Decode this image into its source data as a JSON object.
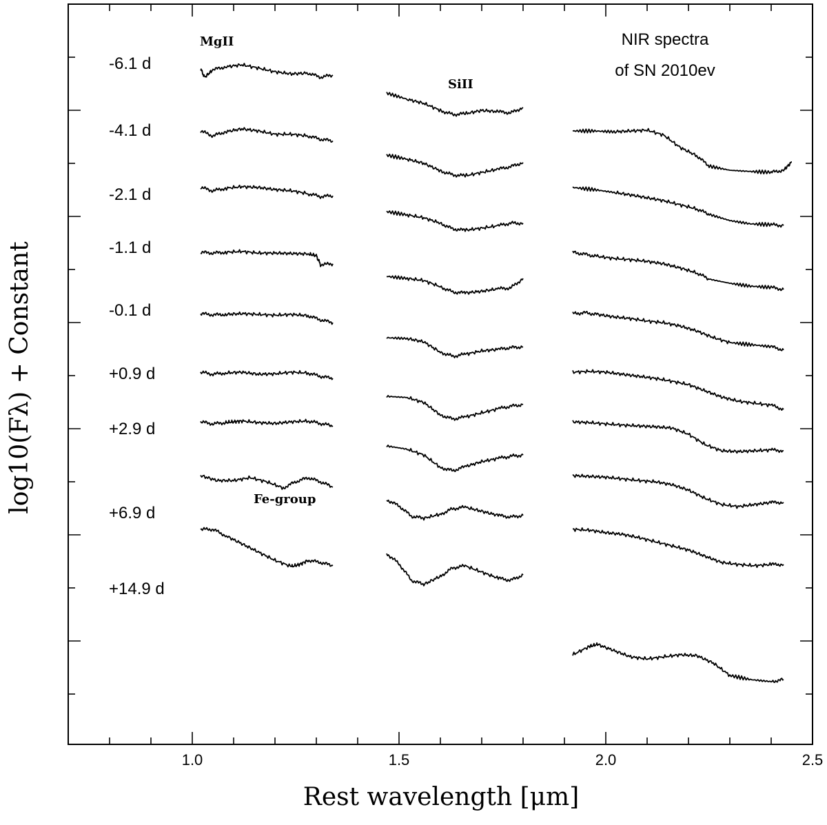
{
  "chart_data": {
    "type": "line",
    "title": "",
    "annotation": [
      "NIR spectra",
      "of SN 2010ev"
    ],
    "xlabel": "Rest wavelength [μm]",
    "ylabel": "log10(Fλ) + Constant",
    "xlim": [
      0.7,
      2.5
    ],
    "x_major_ticks": [
      1.0,
      1.5,
      2.0,
      2.5
    ],
    "x_tick_labels": [
      "1.0",
      "1.5",
      "2.0",
      "2.5"
    ],
    "x_minor_step": 0.1,
    "y_units": "arbitrary (offset)",
    "y_ticks_count": 13,
    "line_labels": [
      {
        "text": "MgII",
        "x": 1.05
      },
      {
        "text": "SiII",
        "x": 1.64
      },
      {
        "text": "Fe-group",
        "x": 1.28
      }
    ],
    "series": [
      {
        "name": "-6.1 d",
        "segments": [
          {
            "x": [
              1.02,
              1.03,
              1.05,
              1.08,
              1.12,
              1.16,
              1.2,
              1.24,
              1.28,
              1.31,
              1.34
            ],
            "y": [
              1.0,
              0.8,
              0.98,
              1.05,
              1.1,
              1.02,
              0.93,
              0.88,
              0.9,
              0.8,
              0.85
            ]
          },
          {
            "x": [
              1.47,
              1.52,
              1.56,
              1.6,
              1.63,
              1.66,
              1.7,
              1.74,
              1.77,
              1.8
            ],
            "y": [
              1.0,
              0.85,
              0.75,
              0.58,
              0.48,
              0.5,
              0.58,
              0.55,
              0.52,
              0.65
            ]
          }
        ]
      },
      {
        "name": "-4.1 d",
        "segments": [
          {
            "x": [
              1.02,
              1.05,
              1.08,
              1.12,
              1.16,
              1.2,
              1.24,
              1.28,
              1.31,
              1.34
            ],
            "y": [
              1.0,
              0.88,
              0.98,
              1.05,
              1.0,
              0.92,
              0.92,
              0.88,
              0.8,
              0.76
            ]
          },
          {
            "x": [
              1.47,
              1.52,
              1.56,
              1.6,
              1.63,
              1.66,
              1.7,
              1.74,
              1.77,
              1.8
            ],
            "y": [
              1.0,
              0.9,
              0.8,
              0.62,
              0.52,
              0.5,
              0.58,
              0.66,
              0.72,
              0.82
            ]
          },
          {
            "x": [
              1.92,
              1.97,
              2.02,
              2.06,
              2.1,
              2.14,
              2.18,
              2.22,
              2.25,
              2.3,
              2.35,
              2.4,
              2.43,
              2.45
            ],
            "y": [
              1.0,
              1.0,
              0.98,
              1.0,
              1.02,
              0.9,
              0.6,
              0.4,
              0.15,
              0.05,
              0.02,
              0.0,
              0.05,
              0.25
            ]
          }
        ]
      },
      {
        "name": "-2.1 d",
        "segments": [
          {
            "x": [
              1.02,
              1.05,
              1.08,
              1.12,
              1.16,
              1.2,
              1.24,
              1.28,
              1.31,
              1.34
            ],
            "y": [
              1.0,
              0.92,
              0.98,
              1.02,
              1.0,
              0.95,
              0.92,
              0.85,
              0.78,
              0.8
            ]
          },
          {
            "x": [
              1.47,
              1.52,
              1.56,
              1.6,
              1.63,
              1.66,
              1.7,
              1.74,
              1.77,
              1.8
            ],
            "y": [
              1.0,
              0.92,
              0.85,
              0.72,
              0.58,
              0.55,
              0.6,
              0.66,
              0.72,
              0.72
            ]
          },
          {
            "x": [
              1.92,
              1.97,
              2.02,
              2.06,
              2.1,
              2.14,
              2.18,
              2.22,
              2.25,
              2.3,
              2.35,
              2.4,
              2.43
            ],
            "y": [
              1.0,
              0.95,
              0.88,
              0.82,
              0.75,
              0.68,
              0.58,
              0.48,
              0.35,
              0.2,
              0.12,
              0.1,
              0.08
            ]
          }
        ]
      },
      {
        "name": "-1.1 d",
        "segments": [
          {
            "x": [
              1.02,
              1.05,
              1.08,
              1.12,
              1.16,
              1.2,
              1.24,
              1.28,
              1.3,
              1.31,
              1.34
            ],
            "y": [
              1.0,
              0.98,
              1.0,
              1.02,
              0.98,
              0.98,
              0.97,
              0.96,
              0.92,
              0.7,
              0.72
            ]
          },
          {
            "x": [
              1.47,
              1.52,
              1.56,
              1.6,
              1.63,
              1.66,
              1.7,
              1.74,
              1.77,
              1.8
            ],
            "y": [
              1.0,
              0.95,
              0.9,
              0.75,
              0.62,
              0.6,
              0.64,
              0.7,
              0.72,
              0.95
            ]
          },
          {
            "x": [
              1.92,
              1.95,
              1.98,
              2.02,
              2.06,
              2.1,
              2.14,
              2.18,
              2.22,
              2.25,
              2.3,
              2.35,
              2.4,
              2.43
            ],
            "y": [
              1.0,
              0.95,
              0.9,
              0.85,
              0.82,
              0.78,
              0.72,
              0.62,
              0.5,
              0.35,
              0.25,
              0.18,
              0.15,
              0.1
            ]
          }
        ]
      },
      {
        "name": "-0.1 d",
        "segments": [
          {
            "x": [
              1.02,
              1.05,
              1.08,
              1.12,
              1.16,
              1.2,
              1.24,
              1.28,
              1.31,
              1.34
            ],
            "y": [
              1.0,
              0.97,
              0.98,
              1.0,
              0.98,
              0.96,
              0.98,
              0.95,
              0.85,
              0.78
            ]
          },
          {
            "x": [
              1.47,
              1.52,
              1.56,
              1.6,
              1.63,
              1.66,
              1.7,
              1.74,
              1.77,
              1.8
            ],
            "y": [
              1.0,
              0.98,
              0.9,
              0.65,
              0.55,
              0.6,
              0.68,
              0.72,
              0.76,
              0.78
            ]
          },
          {
            "x": [
              1.92,
              1.95,
              1.98,
              2.02,
              2.06,
              2.1,
              2.14,
              2.18,
              2.22,
              2.26,
              2.3,
              2.35,
              2.4,
              2.43
            ],
            "y": [
              1.0,
              1.02,
              0.98,
              0.92,
              0.88,
              0.82,
              0.78,
              0.7,
              0.58,
              0.42,
              0.3,
              0.25,
              0.2,
              0.12
            ]
          }
        ]
      },
      {
        "name": "+0.9 d",
        "segments": [
          {
            "x": [
              1.02,
              1.05,
              1.08,
              1.12,
              1.16,
              1.2,
              1.24,
              1.28,
              1.31,
              1.34
            ],
            "y": [
              1.0,
              0.95,
              0.98,
              1.0,
              0.95,
              0.96,
              1.0,
              0.98,
              0.9,
              0.85
            ]
          },
          {
            "x": [
              1.47,
              1.52,
              1.56,
              1.6,
              1.63,
              1.66,
              1.7,
              1.74,
              1.77,
              1.8
            ],
            "y": [
              1.0,
              0.97,
              0.85,
              0.55,
              0.45,
              0.5,
              0.6,
              0.7,
              0.76,
              0.8
            ]
          },
          {
            "x": [
              1.92,
              1.96,
              2.0,
              2.04,
              2.08,
              2.12,
              2.16,
              2.2,
              2.24,
              2.28,
              2.32,
              2.36,
              2.4,
              2.43
            ],
            "y": [
              1.0,
              1.02,
              1.0,
              0.95,
              0.9,
              0.85,
              0.78,
              0.7,
              0.55,
              0.4,
              0.3,
              0.25,
              0.2,
              0.1
            ]
          }
        ]
      },
      {
        "name": "+2.9 d",
        "segments": [
          {
            "x": [
              1.02,
              1.05,
              1.08,
              1.1,
              1.12,
              1.16,
              1.2,
              1.24,
              1.28,
              1.31,
              1.34
            ],
            "y": [
              1.0,
              0.95,
              0.98,
              1.0,
              1.02,
              0.98,
              0.96,
              1.0,
              1.02,
              0.96,
              0.9
            ]
          },
          {
            "x": [
              1.47,
              1.52,
              1.56,
              1.6,
              1.63,
              1.66,
              1.7,
              1.74,
              1.77,
              1.8
            ],
            "y": [
              1.0,
              0.92,
              0.78,
              0.48,
              0.4,
              0.5,
              0.62,
              0.7,
              0.75,
              0.78
            ]
          },
          {
            "x": [
              1.92,
              1.96,
              2.0,
              2.04,
              2.08,
              2.12,
              2.16,
              2.2,
              2.24,
              2.28,
              2.32,
              2.36,
              2.4,
              2.43
            ],
            "y": [
              1.0,
              0.98,
              0.95,
              0.92,
              0.9,
              0.88,
              0.85,
              0.7,
              0.45,
              0.3,
              0.28,
              0.3,
              0.32,
              0.3
            ]
          }
        ]
      },
      {
        "name": "+6.9 d",
        "segments": [
          {
            "x": [
              1.02,
              1.06,
              1.1,
              1.14,
              1.18,
              1.22,
              1.25,
              1.28,
              1.31,
              1.34
            ],
            "y": [
              1.0,
              0.88,
              0.88,
              0.95,
              0.85,
              0.7,
              0.85,
              0.95,
              0.85,
              0.72
            ]
          },
          {
            "x": [
              1.47,
              1.5,
              1.53,
              1.56,
              1.6,
              1.63,
              1.66,
              1.7,
              1.74,
              1.77,
              1.8
            ],
            "y": [
              1.0,
              0.85,
              0.6,
              0.55,
              0.65,
              0.78,
              0.82,
              0.72,
              0.62,
              0.58,
              0.62
            ]
          },
          {
            "x": [
              1.92,
              1.96,
              2.0,
              2.04,
              2.08,
              2.12,
              2.16,
              2.2,
              2.24,
              2.28,
              2.32,
              2.36,
              2.4,
              2.43
            ],
            "y": [
              1.0,
              0.98,
              0.96,
              0.92,
              0.88,
              0.85,
              0.78,
              0.65,
              0.45,
              0.3,
              0.25,
              0.3,
              0.35,
              0.35
            ]
          }
        ]
      },
      {
        "name": "+14.9 d",
        "segments": [
          {
            "x": [
              1.02,
              1.05,
              1.08,
              1.12,
              1.16,
              1.2,
              1.24,
              1.26,
              1.28,
              1.31,
              1.34
            ],
            "y": [
              1.0,
              1.0,
              0.85,
              0.65,
              0.45,
              0.25,
              0.1,
              0.15,
              0.25,
              0.2,
              0.12
            ]
          },
          {
            "x": [
              1.47,
              1.5,
              1.53,
              1.56,
              1.6,
              1.63,
              1.66,
              1.7,
              1.74,
              1.77,
              1.8
            ],
            "y": [
              1.0,
              0.75,
              0.35,
              0.25,
              0.45,
              0.65,
              0.7,
              0.55,
              0.4,
              0.35,
              0.48
            ]
          },
          {
            "x": [
              1.92,
              1.96,
              2.0,
              2.04,
              2.08,
              2.12,
              2.16,
              2.2,
              2.24,
              2.28,
              2.32,
              2.36,
              2.4,
              2.43
            ],
            "y": [
              1.0,
              0.98,
              0.92,
              0.88,
              0.8,
              0.7,
              0.6,
              0.5,
              0.35,
              0.2,
              0.15,
              0.12,
              0.15,
              0.15
            ]
          }
        ]
      },
      {
        "name": "",
        "segments": [
          {
            "x": [
              1.92,
              1.96,
              1.98,
              2.02,
              2.06,
              2.1,
              2.14,
              2.18,
              2.22,
              2.26,
              2.3,
              2.35,
              2.4,
              2.43
            ],
            "y": [
              1.0,
              1.2,
              1.25,
              1.1,
              0.95,
              0.9,
              0.95,
              1.0,
              0.98,
              0.8,
              0.5,
              0.4,
              0.35,
              0.4
            ]
          }
        ]
      }
    ]
  }
}
